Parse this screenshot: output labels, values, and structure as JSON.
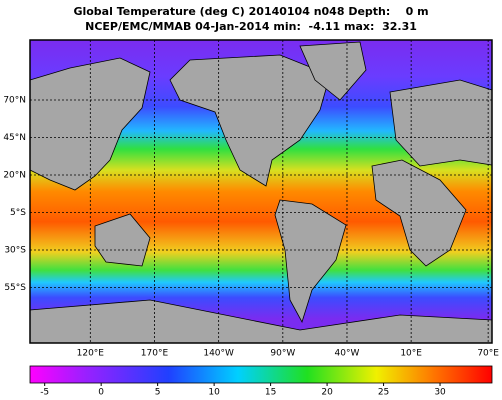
{
  "map": {
    "title": "Global Temperature (deg C) 20140104 n048 Depth:    0 m",
    "subtitle": "NCEP/EMC/MMAB 04-Jan-2014 min:  -4.11 max:  32.31",
    "xlim": [
      73,
      433
    ],
    "ylim": [
      -92,
      110
    ],
    "xticks": [
      {
        "value": 120,
        "label": "120°E"
      },
      {
        "value": 170,
        "label": "170°E"
      },
      {
        "value": 220,
        "label": "140°W"
      },
      {
        "value": 270,
        "label": "90°W"
      },
      {
        "value": 320,
        "label": "40°W"
      },
      {
        "value": 370,
        "label": "10°E"
      },
      {
        "value": 430,
        "label": "70°E"
      }
    ],
    "yticks": [
      {
        "value": 70,
        "label": "70°N"
      },
      {
        "value": 45,
        "label": "45°N"
      },
      {
        "value": 20,
        "label": "20°N"
      },
      {
        "value": -5,
        "label": "5°S"
      },
      {
        "value": -30,
        "label": "30°S"
      },
      {
        "value": -55,
        "label": "55°S"
      }
    ],
    "grid": true,
    "colorbar": {
      "lim": [
        -6.3,
        34.6
      ],
      "ticks": [
        -5,
        0,
        5,
        10,
        15,
        20,
        25,
        30
      ]
    }
  }
}
